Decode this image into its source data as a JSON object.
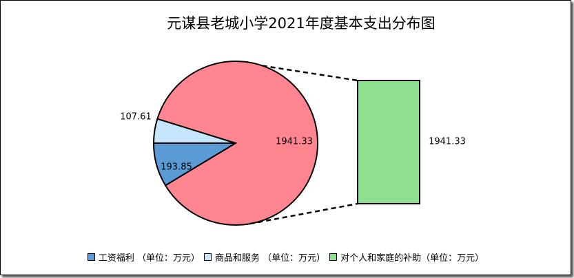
{
  "chart_data": {
    "type": "bar-of-pie",
    "title": "元谋县老城小学2021年度基本支出分布图",
    "categories": [
      "工资福利 （单位：万元）",
      "商品和服务 （单位：万元）",
      "对个人和家庭的补助（单位：万元）"
    ],
    "values": [
      193.85,
      107.61,
      1941.33
    ],
    "colors": [
      "#5b9bd5",
      "#c6e6fb",
      "#8ee08e"
    ],
    "other_color": "#ff8591",
    "legend": "bottom"
  }
}
